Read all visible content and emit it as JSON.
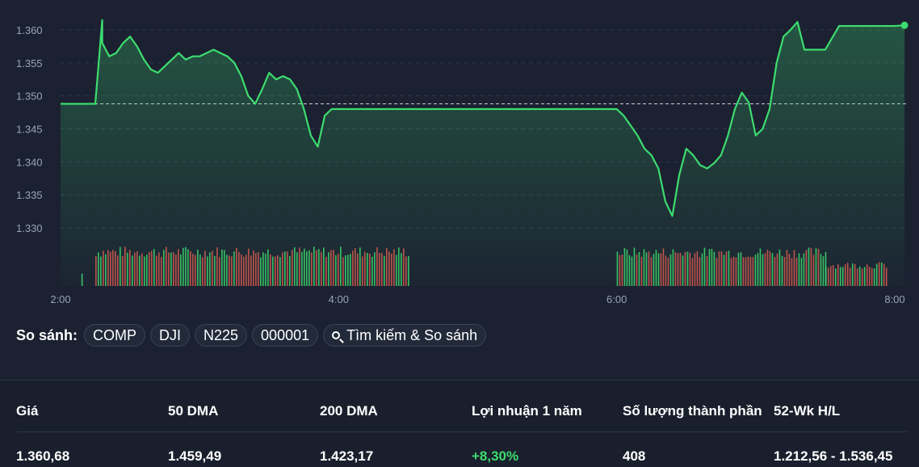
{
  "chart_data": {
    "type": "line",
    "y_ticks": [
      "1.360",
      "1.355",
      "1.350",
      "1.345",
      "1.340",
      "1.335",
      "1.330"
    ],
    "y_tick_values": [
      1.36,
      1.355,
      1.35,
      1.345,
      1.34,
      1.335,
      1.33
    ],
    "x_ticks": [
      "2:00",
      "4:00",
      "6:00",
      "8:00"
    ],
    "x_tick_values": [
      2,
      4,
      6,
      8
    ],
    "reference_value": 1.3488,
    "grid": true,
    "line_color": "#3ddc6f",
    "series": [
      {
        "x": [
          2.0,
          2.25,
          2.25,
          2.3,
          2.3,
          2.35,
          2.4,
          2.45,
          2.5,
          2.55,
          2.6,
          2.65,
          2.7,
          2.75,
          2.8,
          2.85,
          2.9,
          2.95,
          3.0,
          3.05,
          3.1,
          3.15,
          3.2,
          3.25,
          3.3,
          3.35,
          3.4,
          3.45,
          3.5,
          3.55,
          3.6,
          3.65,
          3.7,
          3.75,
          3.8,
          3.85,
          3.9,
          3.95,
          4.0,
          4.05,
          4.1,
          4.15,
          4.2,
          4.25,
          4.3,
          4.35,
          4.4,
          4.45,
          4.5,
          4.6,
          4.8,
          5.0,
          5.2,
          5.4,
          5.6,
          5.8,
          6.0,
          6.05,
          6.1,
          6.15,
          6.2,
          6.25,
          6.3,
          6.35,
          6.4,
          6.45,
          6.5,
          6.55,
          6.6,
          6.65,
          6.7,
          6.75,
          6.8,
          6.85,
          6.9,
          6.95,
          7.0,
          7.05,
          7.1,
          7.15,
          7.2,
          7.25,
          7.3,
          7.35,
          7.4,
          7.45,
          7.5,
          7.6,
          7.7,
          7.8,
          7.9,
          8.0,
          8.07
        ],
        "y": [
          1.3488,
          1.3488,
          1.3488,
          1.3615,
          1.358,
          1.356,
          1.3565,
          1.358,
          1.359,
          1.3575,
          1.3555,
          1.354,
          1.3535,
          1.3545,
          1.3555,
          1.3565,
          1.3555,
          1.356,
          1.356,
          1.3565,
          1.357,
          1.3565,
          1.356,
          1.355,
          1.353,
          1.35,
          1.3488,
          1.351,
          1.3535,
          1.3525,
          1.353,
          1.3525,
          1.351,
          1.348,
          1.344,
          1.3423,
          1.347,
          1.348,
          1.348,
          1.348,
          1.348,
          1.348,
          1.348,
          1.348,
          1.348,
          1.348,
          1.348,
          1.348,
          1.348,
          1.348,
          1.348,
          1.348,
          1.348,
          1.348,
          1.348,
          1.348,
          1.348,
          1.347,
          1.3455,
          1.344,
          1.342,
          1.341,
          1.339,
          1.334,
          1.3318,
          1.338,
          1.342,
          1.341,
          1.3395,
          1.339,
          1.3398,
          1.341,
          1.344,
          1.348,
          1.3505,
          1.349,
          1.344,
          1.345,
          1.348,
          1.355,
          1.359,
          1.36,
          1.3612,
          1.357,
          1.357,
          1.357,
          1.357,
          1.3606,
          1.3606,
          1.3606,
          1.3606,
          1.3606,
          1.3607
        ]
      }
    ],
    "volume_profile": [
      {
        "from": 2.15,
        "to": 2.16,
        "level": 0.3
      },
      {
        "from": 2.25,
        "to": 4.5,
        "level": 0.82
      },
      {
        "from": 6.0,
        "to": 7.5,
        "level": 0.8
      },
      {
        "from": 7.5,
        "to": 7.95,
        "level": 0.5
      }
    ]
  },
  "compare": {
    "label": "So sánh:",
    "chips": [
      "COMP",
      "DJI",
      "N225",
      "000001"
    ],
    "search_label": "Tìm kiếm & So sánh"
  },
  "stats": {
    "headers": [
      "Giá",
      "50 DMA",
      "200 DMA",
      "Lợi nhuận 1 năm",
      "Số lượng thành phần",
      "52-Wk H/L"
    ],
    "values": [
      "1.360,68",
      "1.459,49",
      "1.423,17",
      "+8,30%",
      "408",
      "1.212,56 - 1.536,45"
    ]
  },
  "colors": {
    "background": "#1b2131",
    "up": "#3ddc6f",
    "down": "#e0564f"
  }
}
